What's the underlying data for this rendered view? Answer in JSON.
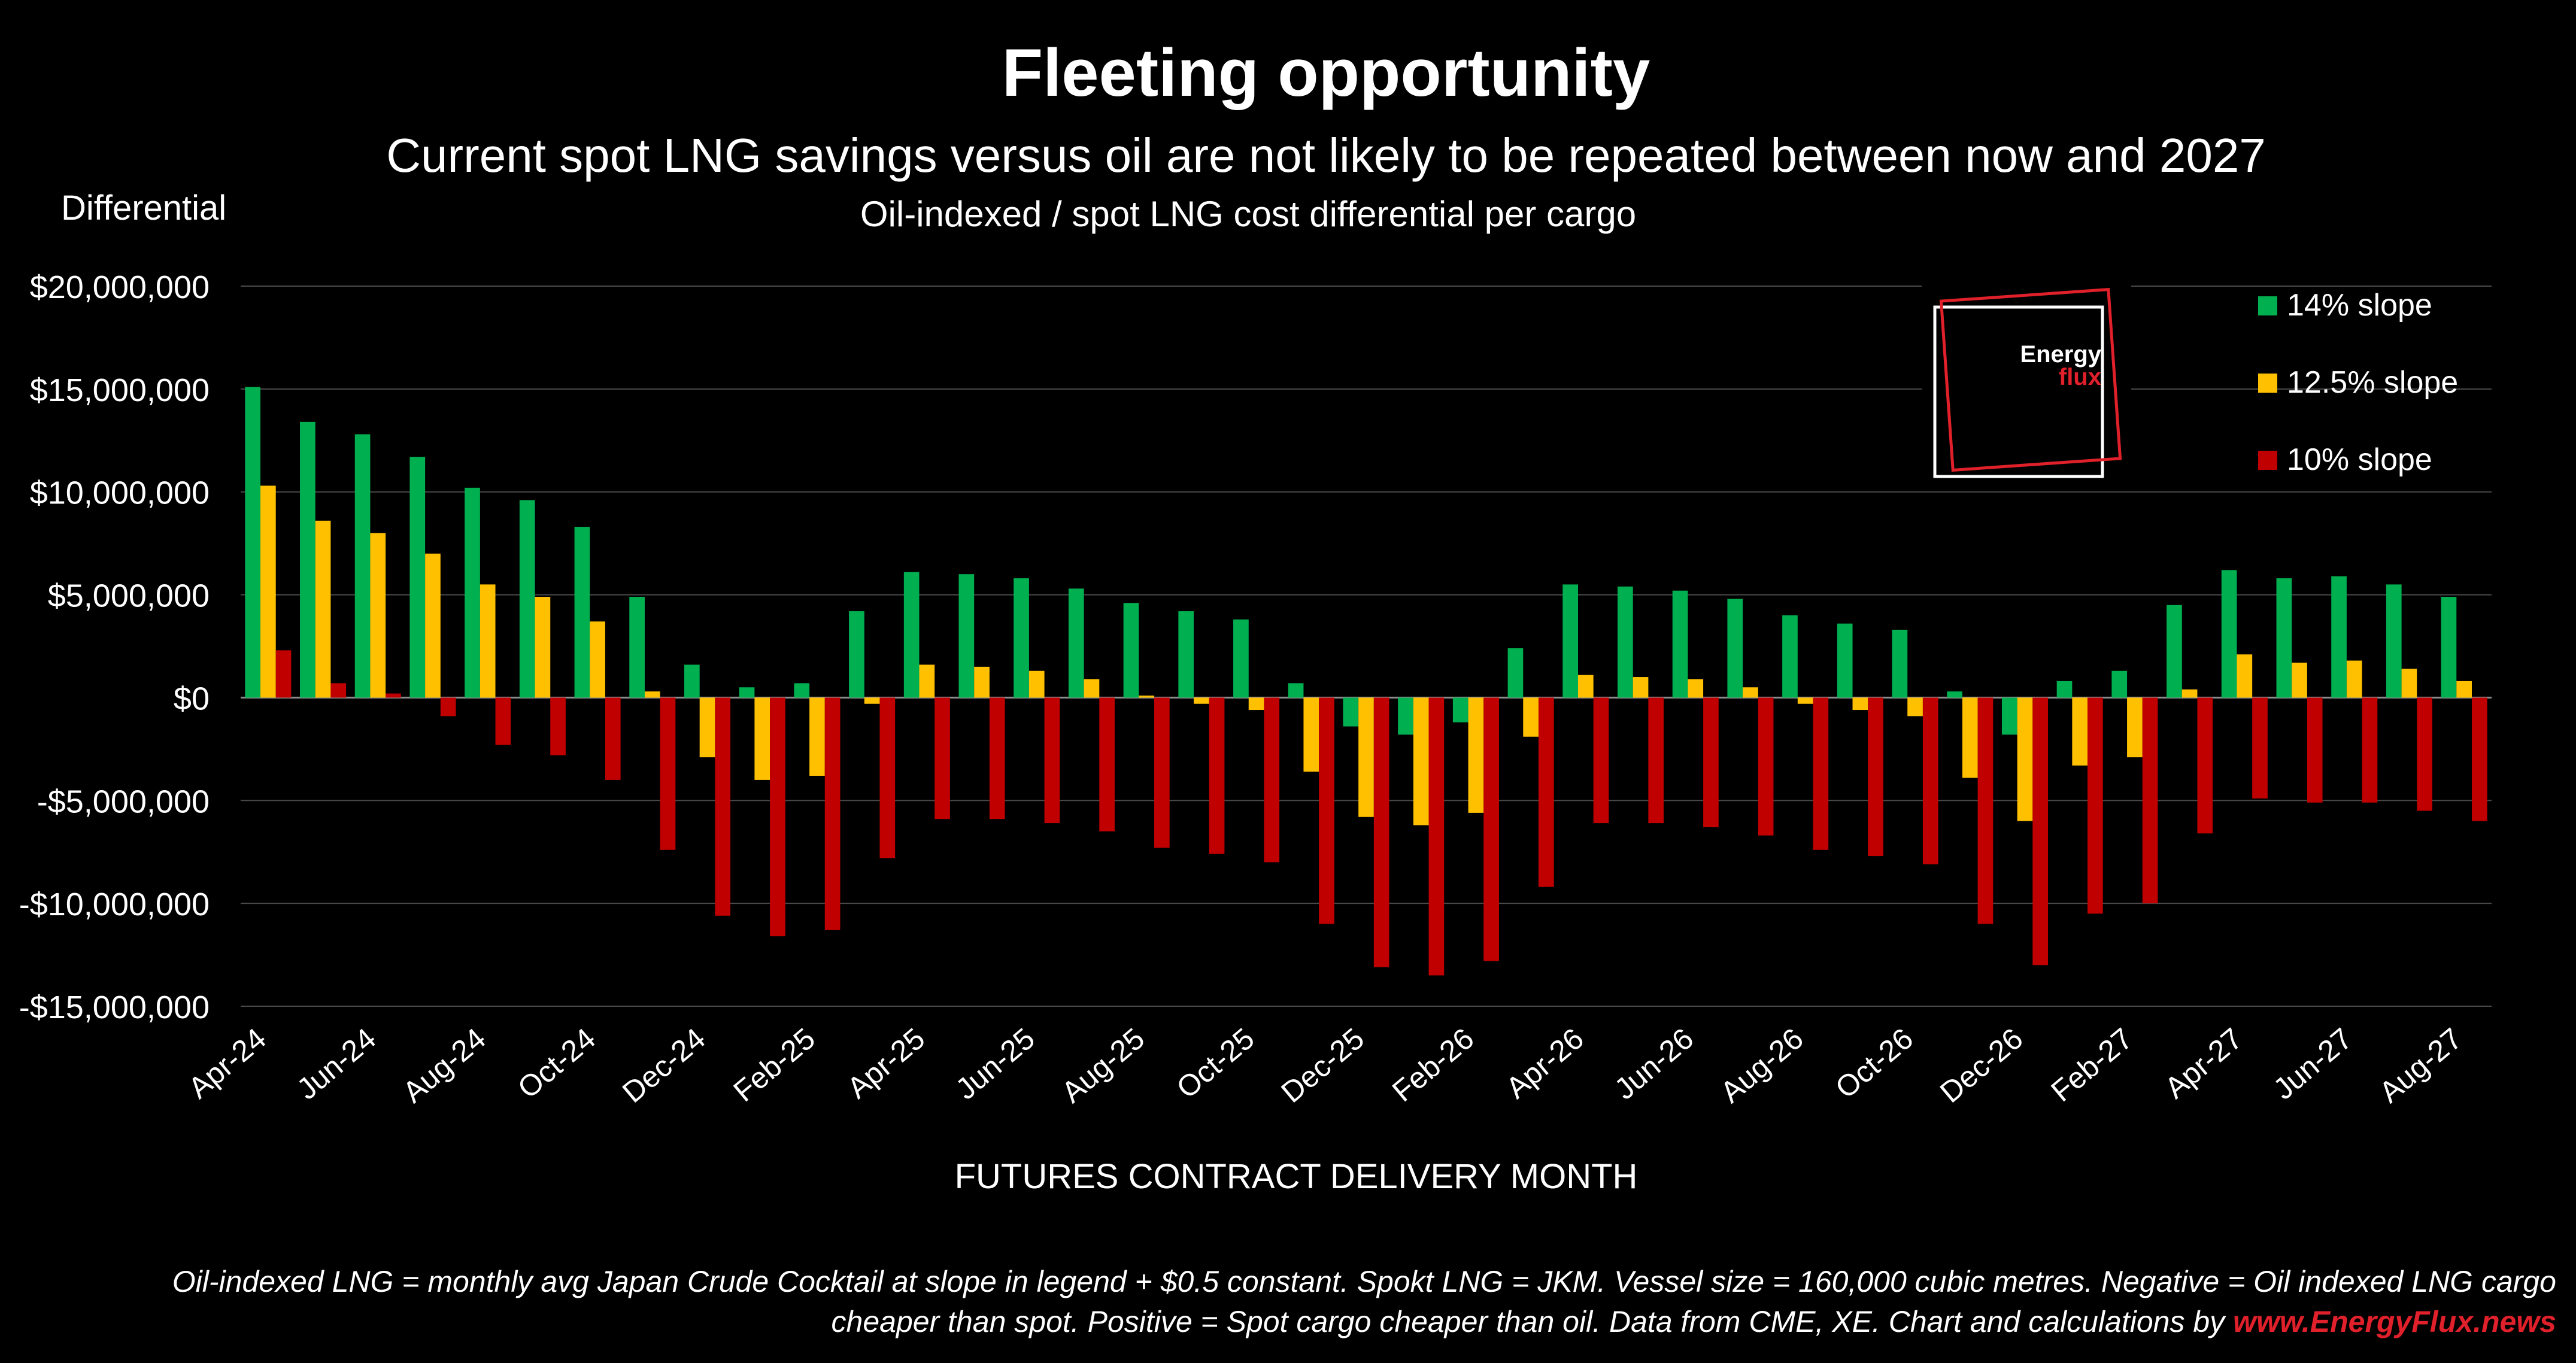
{
  "chart_data": {
    "type": "bar",
    "title": "Fleeting opportunity",
    "subtitle": "Current spot LNG savings versus oil are not likely to be repeated between now and 2027",
    "chart_title": "Oil-indexed / spot LNG cost differential per cargo",
    "ylabel": "Differential",
    "xlabel": "FUTURES CONTRACT DELIVERY MONTH",
    "ylim": [
      -15000000,
      20000000
    ],
    "yticks": [
      20000000,
      15000000,
      10000000,
      5000000,
      0,
      -5000000,
      -10000000,
      -15000000
    ],
    "ytick_labels": [
      "$20,000,000",
      "$15,000,000",
      "$10,000,000",
      "$5,000,000",
      "$0",
      "-$5,000,000",
      "-$10,000,000",
      "-$15,000,000"
    ],
    "grid": true,
    "legend_position": "top-right",
    "categories": [
      "Apr-24",
      "May-24",
      "Jun-24",
      "Jul-24",
      "Aug-24",
      "Sep-24",
      "Oct-24",
      "Nov-24",
      "Dec-24",
      "Jan-25",
      "Feb-25",
      "Mar-25",
      "Apr-25",
      "May-25",
      "Jun-25",
      "Jul-25",
      "Aug-25",
      "Sep-25",
      "Oct-25",
      "Nov-25",
      "Dec-25",
      "Jan-26",
      "Feb-26",
      "Mar-26",
      "Apr-26",
      "May-26",
      "Jun-26",
      "Jul-26",
      "Aug-26",
      "Sep-26",
      "Oct-26",
      "Nov-26",
      "Dec-26",
      "Jan-27",
      "Feb-27",
      "Mar-27",
      "Apr-27",
      "May-27",
      "Jun-27",
      "Jul-27",
      "Aug-27"
    ],
    "xtick_labels": [
      "Apr-24",
      "",
      "Jun-24",
      "",
      "Aug-24",
      "",
      "Oct-24",
      "",
      "Dec-24",
      "",
      "Feb-25",
      "",
      "Apr-25",
      "",
      "Jun-25",
      "",
      "Aug-25",
      "",
      "Oct-25",
      "",
      "Dec-25",
      "",
      "Feb-26",
      "",
      "Apr-26",
      "",
      "Jun-26",
      "",
      "Aug-26",
      "",
      "Oct-26",
      "",
      "Dec-26",
      "",
      "Feb-27",
      "",
      "Apr-27",
      "",
      "Jun-27",
      "",
      "Aug-27"
    ],
    "series": [
      {
        "name": "14% slope",
        "color": "#00B050",
        "values": [
          15100000,
          13400000,
          12800000,
          11700000,
          10200000,
          9600000,
          8300000,
          4900000,
          1600000,
          500000,
          700000,
          4200000,
          6100000,
          6000000,
          5800000,
          5300000,
          4600000,
          4200000,
          3800000,
          700000,
          -1400000,
          -1800000,
          -1200000,
          2400000,
          5500000,
          5400000,
          5200000,
          4800000,
          4000000,
          3600000,
          3300000,
          300000,
          -1800000,
          800000,
          1300000,
          4500000,
          6200000,
          5800000,
          5900000,
          5500000,
          4900000
        ]
      },
      {
        "name": "12.5% slope",
        "color": "#FFC000",
        "values": [
          10300000,
          8600000,
          8000000,
          7000000,
          5500000,
          4900000,
          3700000,
          300000,
          -2900000,
          -4000000,
          -3800000,
          -300000,
          1600000,
          1500000,
          1300000,
          900000,
          100000,
          -300000,
          -600000,
          -3600000,
          -5800000,
          -6200000,
          -5600000,
          -1900000,
          1100000,
          1000000,
          900000,
          500000,
          -300000,
          -600000,
          -900000,
          -3900000,
          -6000000,
          -3300000,
          -2900000,
          400000,
          2100000,
          1700000,
          1800000,
          1400000,
          800000
        ]
      },
      {
        "name": "10% slope",
        "color": "#C00000",
        "values": [
          2300000,
          700000,
          200000,
          -900000,
          -2300000,
          -2800000,
          -4000000,
          -7400000,
          -10600000,
          -11600000,
          -11300000,
          -7800000,
          -5900000,
          -5900000,
          -6100000,
          -6500000,
          -7300000,
          -7600000,
          -8000000,
          -11000000,
          -13100000,
          -13500000,
          -12800000,
          -9200000,
          -6100000,
          -6100000,
          -6300000,
          -6700000,
          -7400000,
          -7700000,
          -8100000,
          -11000000,
          -13000000,
          -10500000,
          -10000000,
          -6600000,
          -4900000,
          -5100000,
          -5100000,
          -5500000,
          -6000000
        ]
      }
    ]
  },
  "logo": {
    "line1": "Energy",
    "line2": "flux",
    "accent_color": "#E0202A"
  },
  "footnote": {
    "line1": "Oil-indexed LNG = monthly avg Japan Crude Cocktail at slope in legend + $0.5 constant. Spokt LNG = JKM. Vessel size = 160,000 cubic metres. Negative = Oil indexed LNG cargo",
    "line2": "cheaper than spot. Positive = Spot cargo cheaper than oil. Data from CME, XE. Chart and calculations by ",
    "link": "www.EnergyFlux.news",
    "link_color": "#E0202A"
  }
}
